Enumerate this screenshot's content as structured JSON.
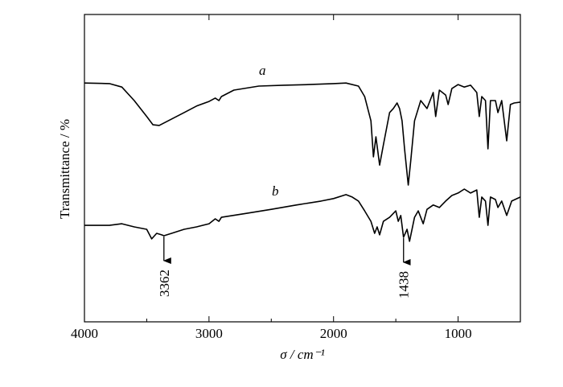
{
  "chart_data": {
    "type": "line",
    "x_label": "σ / cm⁻¹",
    "y_label": "Transmittance / %",
    "xlim": [
      4000,
      500
    ],
    "ylim": [
      0,
      100
    ],
    "xticks": [
      4000,
      3000,
      2000,
      1000
    ],
    "xminor": [
      3500,
      2500,
      1500
    ],
    "series": [
      {
        "name": "a",
        "color": "#000000",
        "x": [
          4000,
          3800,
          3700,
          3600,
          3500,
          3450,
          3400,
          3300,
          3200,
          3100,
          3000,
          2950,
          2920,
          2900,
          2800,
          2600,
          2400,
          2200,
          2000,
          1900,
          1800,
          1750,
          1700,
          1680,
          1660,
          1630,
          1600,
          1550,
          1520,
          1490,
          1470,
          1450,
          1430,
          1400,
          1380,
          1350,
          1300,
          1250,
          1200,
          1180,
          1150,
          1100,
          1080,
          1050,
          1000,
          950,
          900,
          850,
          830,
          810,
          780,
          760,
          740,
          700,
          680,
          650,
          610,
          580,
          550,
          500
        ],
        "values": [
          77.7,
          77.5,
          76.4,
          72.0,
          66.8,
          64.1,
          63.9,
          66.0,
          68.1,
          70.2,
          71.7,
          72.8,
          72.0,
          73.3,
          75.4,
          76.7,
          77.0,
          77.2,
          77.5,
          77.7,
          76.7,
          73.3,
          65.4,
          53.7,
          60.2,
          51.0,
          57.6,
          68.1,
          69.4,
          71.2,
          69.4,
          65.4,
          56.3,
          44.5,
          52.4,
          65.4,
          72.0,
          69.4,
          74.6,
          66.8,
          75.4,
          73.8,
          70.7,
          75.9,
          77.2,
          76.4,
          77.0,
          74.6,
          66.8,
          73.3,
          72.0,
          56.3,
          72.0,
          72.0,
          68.1,
          72.0,
          58.9,
          70.7,
          71.2,
          71.5
        ]
      },
      {
        "name": "b",
        "color": "#000000",
        "x": [
          4000,
          3800,
          3700,
          3600,
          3500,
          3460,
          3420,
          3380,
          3362,
          3300,
          3200,
          3100,
          3000,
          2950,
          2920,
          2900,
          2700,
          2500,
          2300,
          2100,
          2000,
          1900,
          1850,
          1800,
          1750,
          1700,
          1670,
          1650,
          1630,
          1600,
          1550,
          1500,
          1480,
          1460,
          1438,
          1410,
          1390,
          1350,
          1320,
          1280,
          1250,
          1200,
          1150,
          1100,
          1050,
          1000,
          950,
          900,
          850,
          830,
          810,
          780,
          760,
          740,
          700,
          680,
          650,
          610,
          570,
          500
        ],
        "values": [
          31.4,
          31.4,
          31.9,
          30.9,
          30.1,
          27.0,
          28.8,
          28.3,
          28.0,
          28.8,
          30.1,
          30.9,
          31.9,
          33.5,
          32.7,
          34.0,
          35.3,
          36.6,
          38.0,
          39.3,
          40.1,
          41.4,
          40.6,
          39.3,
          36.1,
          32.7,
          28.8,
          30.9,
          28.3,
          32.7,
          34.0,
          36.1,
          32.7,
          34.6,
          27.5,
          30.1,
          26.2,
          34.0,
          36.1,
          31.9,
          36.6,
          38.0,
          37.2,
          39.3,
          41.1,
          41.9,
          43.2,
          41.9,
          42.9,
          34.0,
          40.6,
          39.3,
          31.4,
          40.6,
          39.8,
          37.2,
          39.3,
          34.6,
          39.3,
          40.6
        ]
      }
    ],
    "annotations": [
      {
        "text": "3362",
        "x": 3362
      },
      {
        "text": "1438",
        "x": 1438
      }
    ]
  }
}
